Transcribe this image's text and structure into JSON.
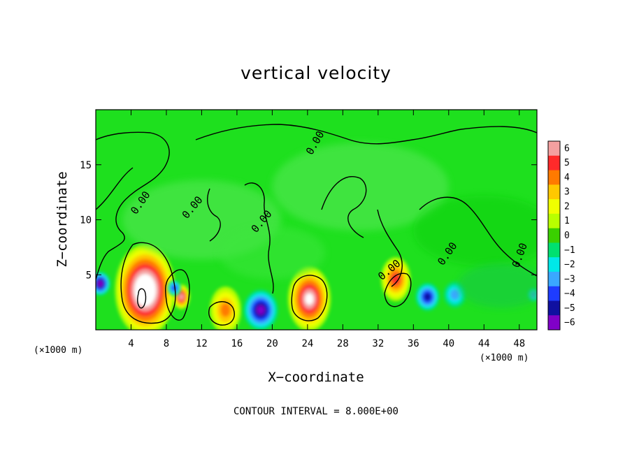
{
  "chart_data": {
    "type": "heatmap",
    "title": "vertical velocity",
    "xlabel": "X−coordinate",
    "ylabel": "Z−coordinate",
    "x_unit_label": "(×1000 m)",
    "y_unit_label": "(×1000 m)",
    "xlim": [
      0,
      50
    ],
    "ylim": [
      0,
      20
    ],
    "x_ticks": [
      "4",
      "8",
      "12",
      "16",
      "20",
      "24",
      "28",
      "32",
      "36",
      "40",
      "44",
      "48"
    ],
    "x_tick_values": [
      4,
      8,
      12,
      16,
      20,
      24,
      28,
      32,
      36,
      40,
      44,
      48
    ],
    "y_ticks": [
      "5",
      "10",
      "15"
    ],
    "y_tick_values": [
      5,
      10,
      15
    ],
    "contour_label": "0.00",
    "footer": "CONTOUR INTERVAL = 8.000E+00",
    "colorbar": {
      "labels": [
        "6",
        "5",
        "4",
        "3",
        "2",
        "1",
        "0",
        "−1",
        "−2",
        "−3",
        "−4",
        "−5",
        "−6"
      ],
      "colors": [
        "#f4a0a0",
        "#ff2a2a",
        "#ff7a00",
        "#ffc800",
        "#f0ff00",
        "#b8ff00",
        "#3ad000",
        "#00e070",
        "#00e8e8",
        "#3aa8ff",
        "#1e3cff",
        "#1010a0",
        "#8000c8"
      ],
      "background": "#1ee01e"
    },
    "features": [
      {
        "x": 5.6,
        "z": 3.6,
        "w": 6.5,
        "kind": "updraft",
        "peak": 9
      },
      {
        "x": 24.2,
        "z": 2.8,
        "w": 4.5,
        "kind": "updraft",
        "peak": 7
      },
      {
        "x": 34.0,
        "z": 4.6,
        "w": 3.0,
        "kind": "updraft",
        "peak": 5
      },
      {
        "x": 14.7,
        "z": 1.8,
        "w": 3.2,
        "kind": "updraft",
        "peak": 4
      },
      {
        "x": 9.7,
        "z": 3.0,
        "w": 1.6,
        "kind": "updraft",
        "peak": 6
      },
      {
        "x": 0.5,
        "z": 4.2,
        "w": 2.0,
        "kind": "downdraft",
        "peak": -6
      },
      {
        "x": 8.9,
        "z": 3.8,
        "w": 1.2,
        "kind": "downdraft",
        "peak": -4
      },
      {
        "x": 18.7,
        "z": 1.8,
        "w": 3.6,
        "kind": "downdraft",
        "peak": -6
      },
      {
        "x": 37.6,
        "z": 3.0,
        "w": 2.4,
        "kind": "downdraft",
        "peak": -5
      },
      {
        "x": 40.7,
        "z": 3.2,
        "w": 2.2,
        "kind": "downdraft",
        "peak": -3
      },
      {
        "x": 49.6,
        "z": 3.2,
        "w": 1.0,
        "kind": "downdraft",
        "peak": -3
      }
    ]
  }
}
